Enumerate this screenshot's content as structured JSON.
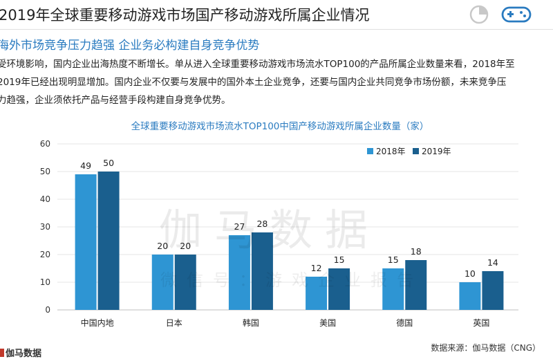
{
  "page": {
    "title": "2019年全球重要移动游戏市场国产移动游戏所属企业情况",
    "section_heading": "海外市场竞争压力趋强  企业务必构建自身竞争优势",
    "body_lines": [
      "受环境影响，国内企业出海热度不断增长。单从进入全球重要移动游戏市场流水TOP100的产品所属企业数量来看，2018年至",
      "2019年已经出现明显增加。国内企业不仅要与发展中的国外本土企业竞争，还要与国内企业共同竞争市场份额，未来竞争压",
      "力趋强，企业须依托产品与经营手段构建自身竞争优势。"
    ],
    "watermark": "伽马数据",
    "watermark_sub": "微信号：游戏企业报告",
    "source": "数据来源：伽马数据（CNG）",
    "logo_text": "伽马数据",
    "icons": [
      "pie-chart-icon",
      "gamepad-icon"
    ]
  },
  "chart_data": {
    "type": "bar",
    "title": "全球重要移动游戏市场流水TOP100中国产移动游戏所属企业数量（家）",
    "categories": [
      "中国内地",
      "日本",
      "韩国",
      "美国",
      "德国",
      "英国"
    ],
    "series": [
      {
        "name": "2018年",
        "values": [
          49,
          20,
          27,
          12,
          15,
          10
        ],
        "color": "#2e95d3"
      },
      {
        "name": "2019年",
        "values": [
          50,
          20,
          28,
          15,
          18,
          14
        ],
        "color": "#1a5f8e"
      }
    ],
    "ylim": [
      0,
      60
    ],
    "yticks": [
      0,
      10,
      20,
      30,
      40,
      50,
      60
    ],
    "grid": true,
    "legend_position": "top-right",
    "data_labels": true
  }
}
